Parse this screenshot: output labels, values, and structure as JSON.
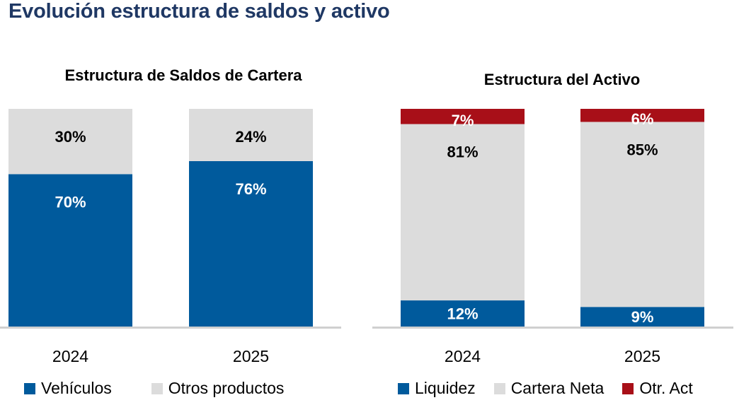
{
  "page": {
    "title": "Evolución estructura de saldos y activo"
  },
  "colors": {
    "title": "#1F3864",
    "blue": "#005A9C",
    "gray": "#DCDCDC",
    "red": "#A80F18",
    "axis": "#D0D0D0"
  },
  "chart_data": [
    {
      "type": "bar",
      "stacked": true,
      "normalized": true,
      "title": "Estructura de Saldos de Cartera",
      "categories": [
        "2024",
        "2025"
      ],
      "series": [
        {
          "name": "Vehículos",
          "color": "#005A9C",
          "label_color": "#FFFFFF",
          "values": [
            70,
            76
          ],
          "labels": [
            "70%",
            "76%"
          ]
        },
        {
          "name": "Otros productos",
          "color": "#DCDCDC",
          "label_color": "#000000",
          "values": [
            30,
            24
          ],
          "labels": [
            "30%",
            "24%"
          ]
        }
      ],
      "xlabel": "",
      "ylabel": "",
      "ylim": [
        0,
        100
      ],
      "grid": false,
      "legend": "bottom"
    },
    {
      "type": "bar",
      "stacked": true,
      "normalized": true,
      "title": "Estructura del Activo",
      "categories": [
        "2024",
        "2025"
      ],
      "series": [
        {
          "name": "Liquidez",
          "color": "#005A9C",
          "label_color": "#FFFFFF",
          "values": [
            12,
            9
          ],
          "labels": [
            "12%",
            "9%"
          ]
        },
        {
          "name": "Cartera Neta",
          "color": "#DCDCDC",
          "label_color": "#000000",
          "values": [
            81,
            85
          ],
          "labels": [
            "81%",
            "85%"
          ]
        },
        {
          "name": "Otr. Act",
          "color": "#A80F18",
          "label_color": "#FFFFFF",
          "values": [
            7,
            6
          ],
          "labels": [
            "7%",
            "6%"
          ]
        }
      ],
      "xlabel": "",
      "ylabel": "",
      "ylim": [
        0,
        100
      ],
      "grid": false,
      "legend": "bottom"
    }
  ]
}
